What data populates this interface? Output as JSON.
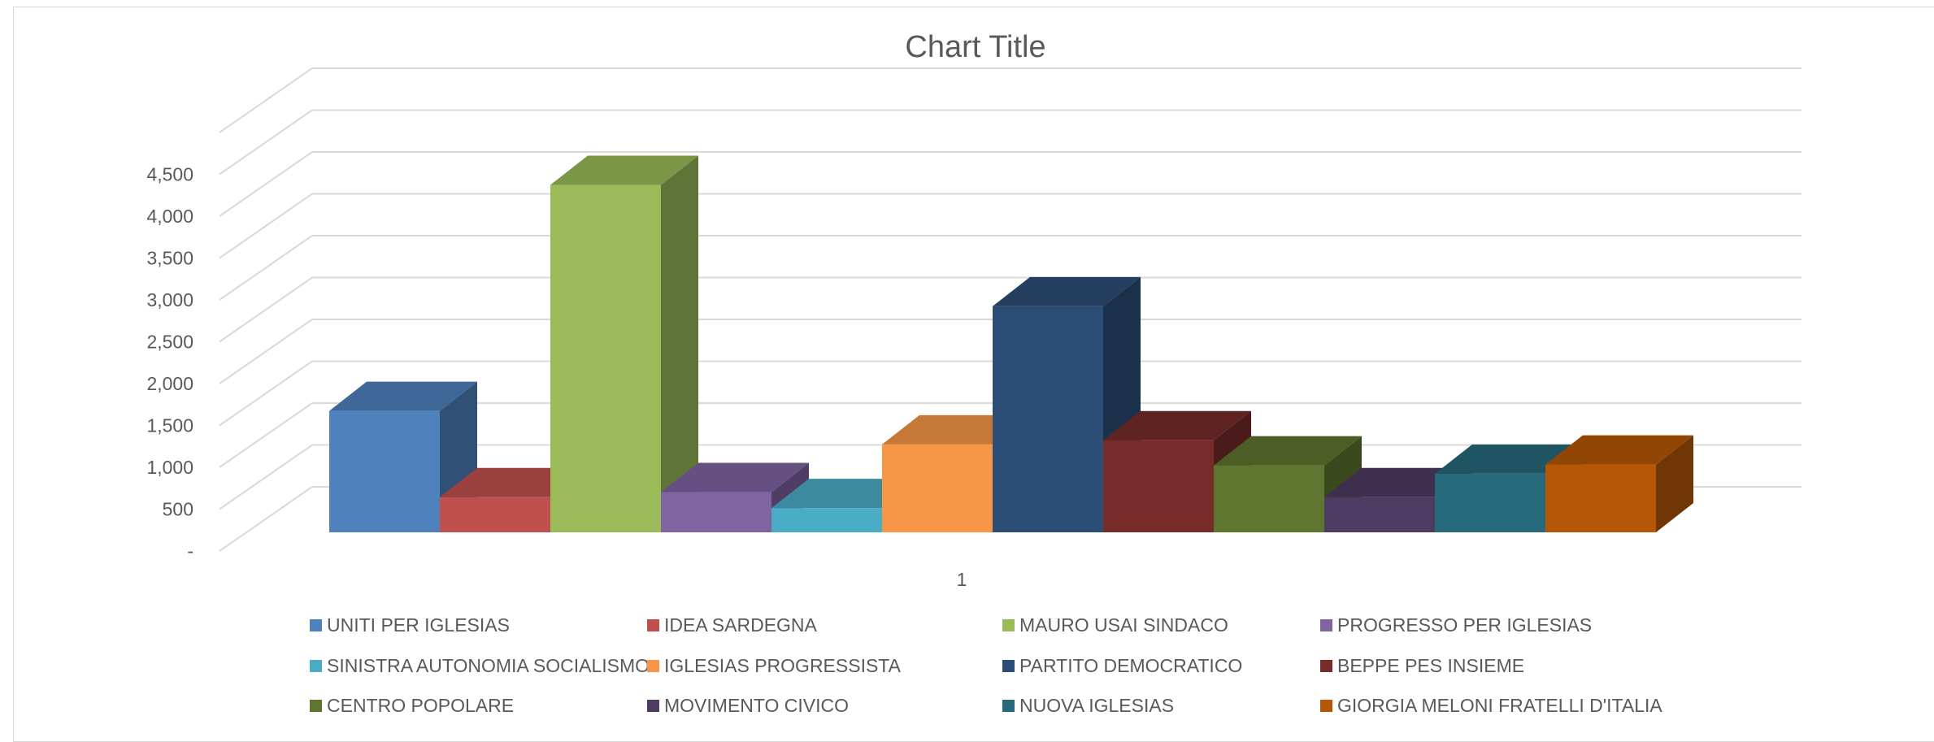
{
  "chart_data": {
    "type": "bar",
    "title": "Chart Title",
    "categories": [
      "1"
    ],
    "y_ticks": [
      "-",
      "500",
      "1,000",
      "1,500",
      "2,000",
      "2,500",
      "3,000",
      "3,500",
      "4,000",
      "4,500"
    ],
    "ylim": [
      0,
      5000
    ],
    "grid": true,
    "legend_position": "bottom",
    "series": [
      {
        "name": "UNITI PER IGLESIAS",
        "values": [
          1450
        ],
        "color": "#4F81BD"
      },
      {
        "name": "IDEA SARDEGNA",
        "values": [
          420
        ],
        "color": "#C0504D"
      },
      {
        "name": "MAURO USAI SINDACO",
        "values": [
          4150
        ],
        "color": "#9BBB59"
      },
      {
        "name": "PROGRESSO PER IGLESIAS",
        "values": [
          480
        ],
        "color": "#8064A2"
      },
      {
        "name": "SINISTRA AUTONOMIA SOCIALISMO",
        "values": [
          290
        ],
        "color": "#4BACC6"
      },
      {
        "name": "IGLESIAS PROGRESSISTA",
        "values": [
          1050
        ],
        "color": "#F79646"
      },
      {
        "name": "PARTITO DEMOCRATICO",
        "values": [
          2700
        ],
        "color": "#2C4D75"
      },
      {
        "name": "BEPPE PES INSIEME",
        "values": [
          1100
        ],
        "color": "#772C2A"
      },
      {
        "name": "CENTRO POPOLARE",
        "values": [
          800
        ],
        "color": "#5F7530"
      },
      {
        "name": "MOVIMENTO CIVICO",
        "values": [
          420
        ],
        "color": "#4D3B62"
      },
      {
        "name": "NUOVA IGLESIAS",
        "values": [
          700
        ],
        "color": "#276A7C"
      },
      {
        "name": "GIORGIA MELONI FRATELLI D'ITALIA",
        "values": [
          810
        ],
        "color": "#B65708"
      }
    ]
  }
}
